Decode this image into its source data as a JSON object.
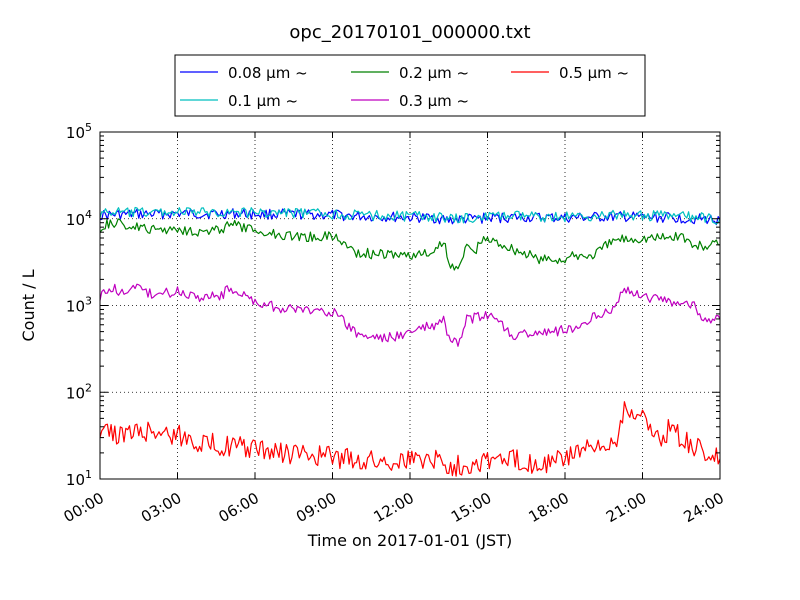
{
  "chart_data": {
    "type": "line",
    "title": "opc_20170101_000000.txt",
    "xlabel": "Time on 2017-01-01 (JST)",
    "ylabel": "Count / L",
    "x_unit": "hour",
    "xlim": [
      0,
      24
    ],
    "ylim": [
      10,
      100000
    ],
    "yscale": "log",
    "grid": true,
    "legend": {
      "placement": "top-center",
      "columns": 3
    },
    "x_ticks": [
      "00:00",
      "03:00",
      "06:00",
      "09:00",
      "12:00",
      "15:00",
      "18:00",
      "21:00",
      "24:00"
    ],
    "y_ticks": [
      {
        "base": "10",
        "exp": "1"
      },
      {
        "base": "10",
        "exp": "2"
      },
      {
        "base": "10",
        "exp": "3"
      },
      {
        "base": "10",
        "exp": "4"
      },
      {
        "base": "10",
        "exp": "5"
      }
    ],
    "series": [
      {
        "name": "0.08 μm ~",
        "color": "#0000ff",
        "points": [
          [
            0,
            11000
          ],
          [
            1,
            11200
          ],
          [
            2,
            11300
          ],
          [
            3,
            11500
          ],
          [
            4,
            11400
          ],
          [
            5,
            11500
          ],
          [
            6,
            11300
          ],
          [
            7,
            11300
          ],
          [
            8,
            11200
          ],
          [
            9,
            11000
          ],
          [
            10,
            10700
          ],
          [
            11,
            10500
          ],
          [
            12,
            10300
          ],
          [
            13,
            10200
          ],
          [
            13.5,
            9600
          ],
          [
            14,
            9800
          ],
          [
            15,
            10200
          ],
          [
            16,
            10400
          ],
          [
            17,
            10300
          ],
          [
            18,
            10200
          ],
          [
            19,
            10400
          ],
          [
            20,
            10500
          ],
          [
            21,
            10400
          ],
          [
            22,
            10300
          ],
          [
            23,
            10000
          ],
          [
            24,
            9700
          ]
        ]
      },
      {
        "name": "0.1 μm ~",
        "color": "#00bfbf",
        "points": [
          [
            0,
            11500
          ],
          [
            0.5,
            12000
          ],
          [
            1,
            11700
          ],
          [
            2,
            11900
          ],
          [
            3,
            12000
          ],
          [
            4,
            11800
          ],
          [
            5,
            12000
          ],
          [
            6,
            11800
          ],
          [
            7,
            11700
          ],
          [
            8,
            11600
          ],
          [
            9,
            11300
          ],
          [
            10,
            11000
          ],
          [
            11,
            10900
          ],
          [
            12,
            10700
          ],
          [
            13,
            10600
          ],
          [
            13.5,
            9800
          ],
          [
            14,
            10000
          ],
          [
            15,
            10600
          ],
          [
            16,
            10700
          ],
          [
            17,
            10600
          ],
          [
            18,
            10500
          ],
          [
            19,
            10800
          ],
          [
            20,
            11000
          ],
          [
            21,
            10900
          ],
          [
            22,
            10800
          ],
          [
            23,
            10400
          ],
          [
            24,
            9900
          ]
        ]
      },
      {
        "name": "0.2 μm ~",
        "color": "#008000",
        "points": [
          [
            0,
            7800
          ],
          [
            0.4,
            9000
          ],
          [
            1,
            8400
          ],
          [
            2,
            7400
          ],
          [
            3,
            7700
          ],
          [
            4,
            7000
          ],
          [
            4.7,
            7500
          ],
          [
            5,
            8800
          ],
          [
            6,
            7200
          ],
          [
            7,
            6600
          ],
          [
            8,
            6100
          ],
          [
            9,
            6400
          ],
          [
            10,
            4000
          ],
          [
            11,
            3900
          ],
          [
            12,
            3800
          ],
          [
            12.5,
            3900
          ],
          [
            13,
            4100
          ],
          [
            13.3,
            5800
          ],
          [
            13.5,
            2900
          ],
          [
            14,
            3000
          ],
          [
            14.2,
            5200
          ],
          [
            14.5,
            4000
          ],
          [
            14.7,
            5400
          ],
          [
            15,
            5800
          ],
          [
            15.5,
            5200
          ],
          [
            16,
            4500
          ],
          [
            17,
            3400
          ],
          [
            18,
            3400
          ],
          [
            18.5,
            3800
          ],
          [
            19,
            3700
          ],
          [
            20,
            5800
          ],
          [
            21,
            6000
          ],
          [
            22,
            6100
          ],
          [
            22.5,
            6500
          ],
          [
            23,
            4800
          ],
          [
            24,
            5000
          ]
        ]
      },
      {
        "name": "0.3 μm ~",
        "color": "#bf00bf",
        "points": [
          [
            0,
            1300
          ],
          [
            0.5,
            1550
          ],
          [
            1,
            1400
          ],
          [
            1.5,
            1600
          ],
          [
            2,
            1350
          ],
          [
            3,
            1450
          ],
          [
            4,
            1250
          ],
          [
            4.7,
            1300
          ],
          [
            5,
            1600
          ],
          [
            6,
            1100
          ],
          [
            7,
            920
          ],
          [
            8,
            880
          ],
          [
            9,
            850
          ],
          [
            10,
            450
          ],
          [
            11,
            420
          ],
          [
            12,
            480
          ],
          [
            12.5,
            560
          ],
          [
            13,
            560
          ],
          [
            13.3,
            700
          ],
          [
            13.5,
            400
          ],
          [
            14,
            380
          ],
          [
            14.2,
            700
          ],
          [
            15,
            750
          ],
          [
            15.5,
            650
          ],
          [
            16,
            450
          ],
          [
            17,
            480
          ],
          [
            18,
            520
          ],
          [
            18.5,
            560
          ],
          [
            19,
            720
          ],
          [
            20,
            1000
          ],
          [
            20.3,
            1600
          ],
          [
            21,
            1250
          ],
          [
            22,
            1150
          ],
          [
            23,
            1000
          ],
          [
            23.5,
            620
          ],
          [
            24,
            700
          ]
        ]
      },
      {
        "name": "0.5 μm ~",
        "color": "#ff0000",
        "points": [
          [
            0,
            40
          ],
          [
            0.5,
            33
          ],
          [
            1,
            33
          ],
          [
            2,
            36
          ],
          [
            3,
            32
          ],
          [
            4,
            26
          ],
          [
            5,
            24
          ],
          [
            6,
            22
          ],
          [
            7,
            20
          ],
          [
            8,
            19
          ],
          [
            9,
            18
          ],
          [
            10,
            16.5
          ],
          [
            11,
            16
          ],
          [
            12,
            17
          ],
          [
            13,
            17.5
          ],
          [
            13.5,
            14
          ],
          [
            14,
            14.5
          ],
          [
            15,
            17
          ],
          [
            16,
            16.5
          ],
          [
            17,
            15
          ],
          [
            18,
            17
          ],
          [
            18.5,
            22
          ],
          [
            19,
            21
          ],
          [
            19.5,
            22
          ],
          [
            20,
            30
          ],
          [
            20.3,
            70
          ],
          [
            21,
            50
          ],
          [
            21.3,
            40
          ],
          [
            21.8,
            28
          ],
          [
            22,
            38
          ],
          [
            23,
            23
          ],
          [
            24,
            17
          ]
        ]
      }
    ]
  }
}
